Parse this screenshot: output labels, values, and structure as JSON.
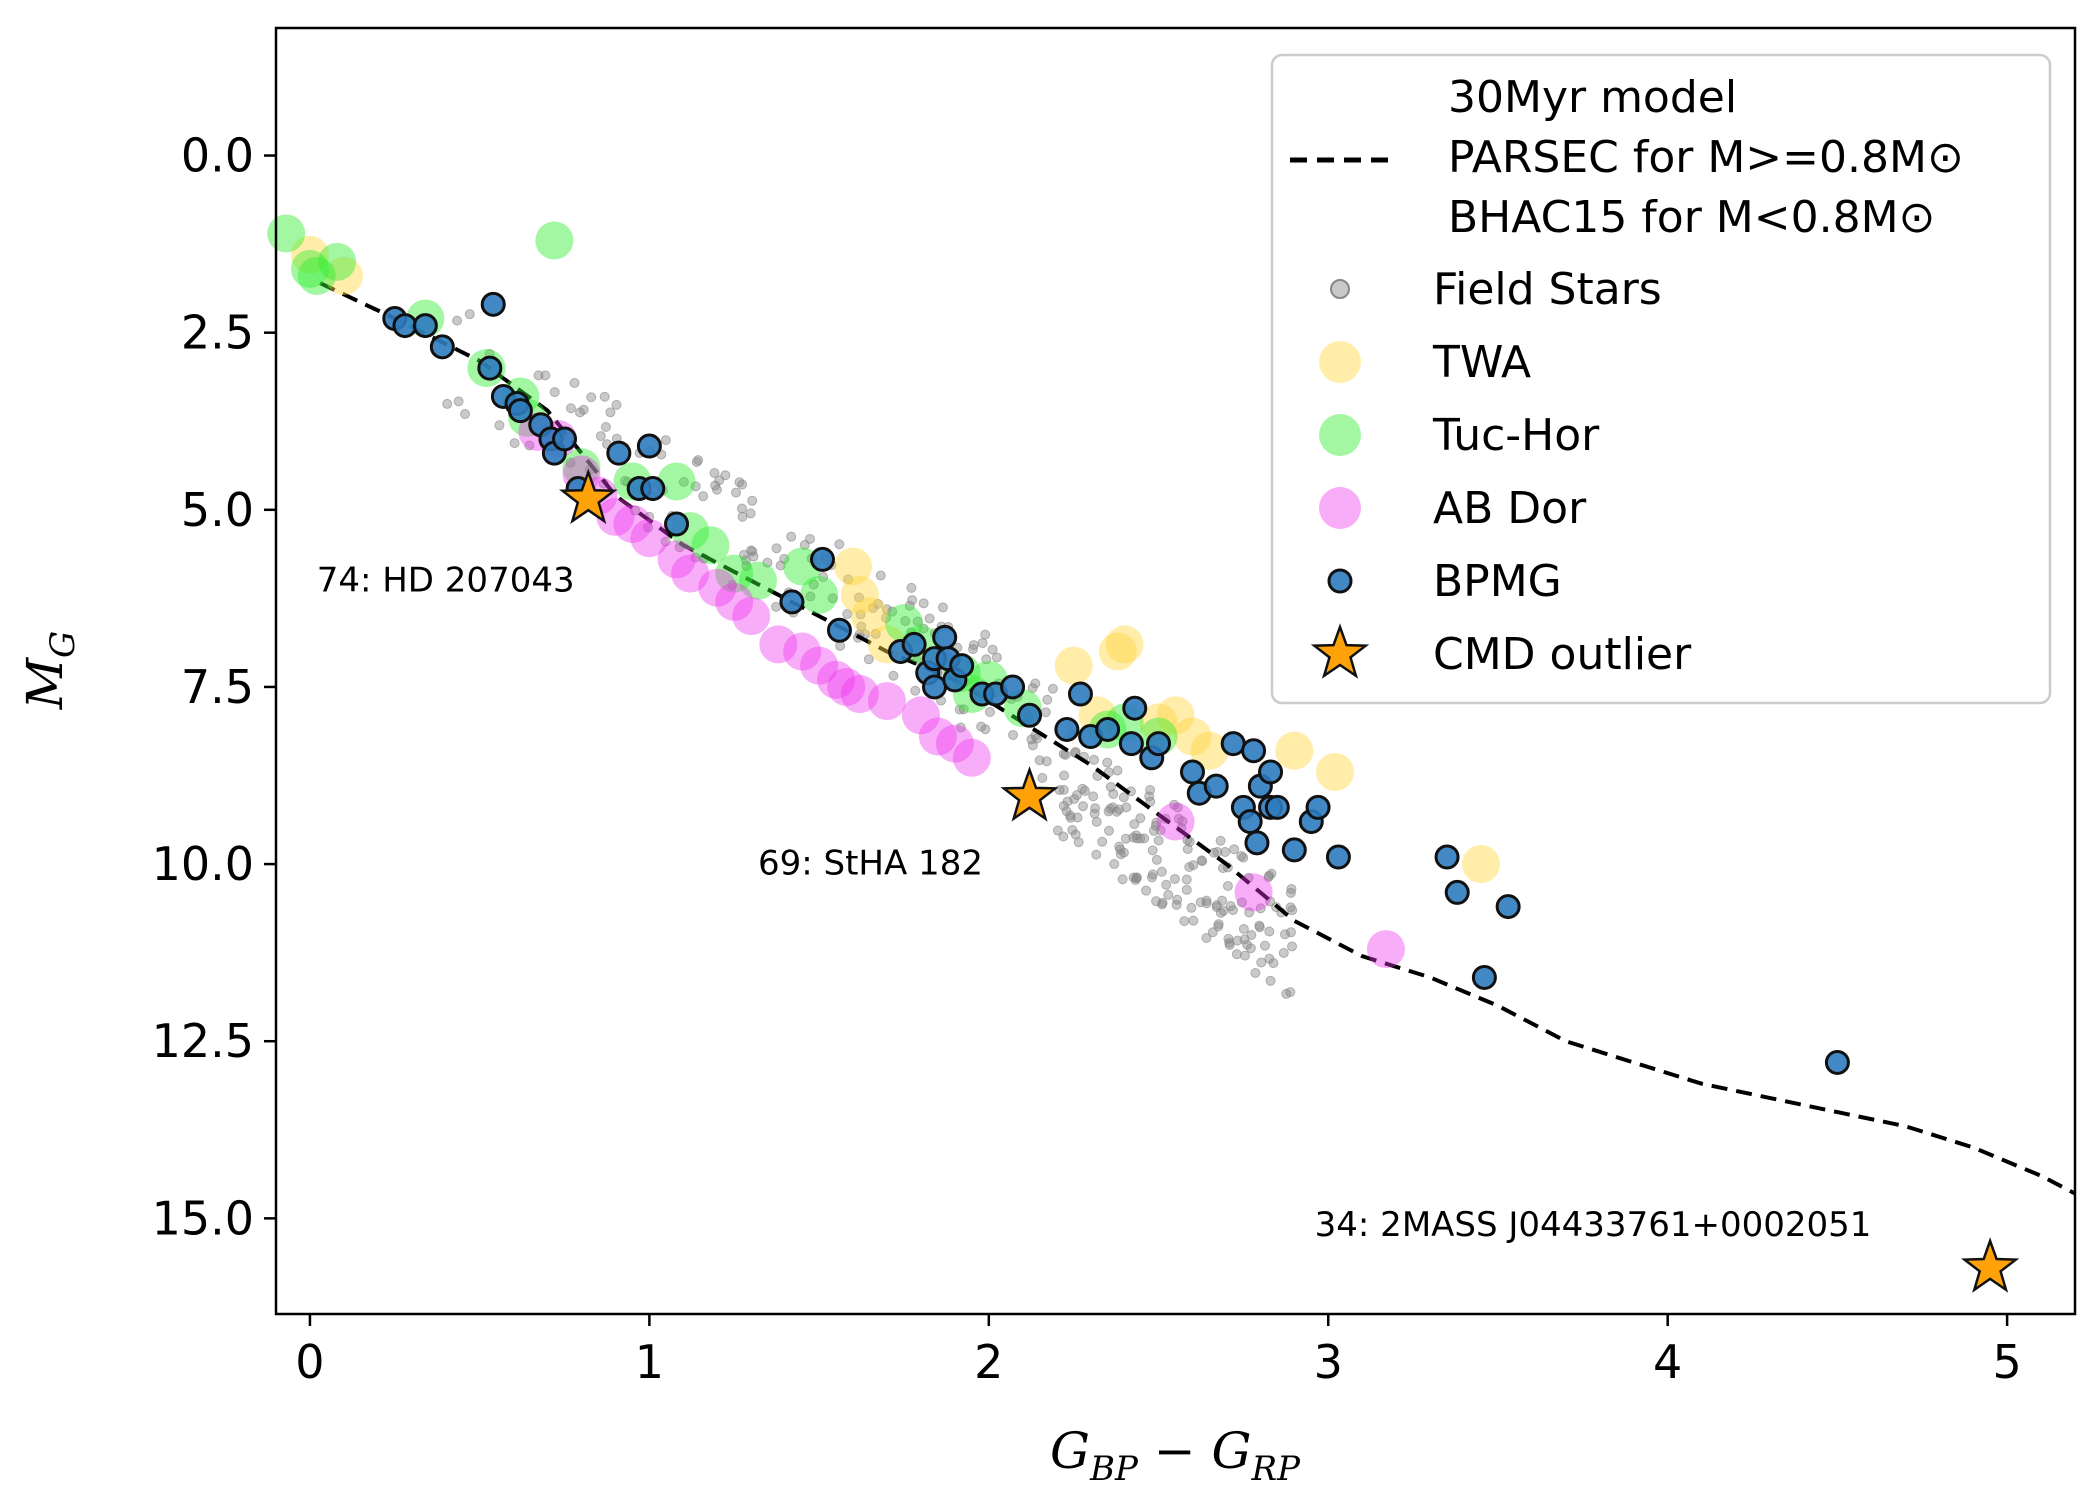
{
  "chart_data": {
    "type": "scatter",
    "xlabel": "G_BP − G_RP",
    "ylabel": "M_G",
    "xlim": [
      -0.1,
      5.2
    ],
    "ylim": [
      16.35,
      -1.8
    ],
    "x_ticks": [
      "0",
      "1",
      "2",
      "3",
      "4",
      "5"
    ],
    "y_ticks": [
      "0.0",
      "2.5",
      "5.0",
      "7.5",
      "10.0",
      "12.5",
      "15.0"
    ],
    "legend": {
      "position": "top-right",
      "model_label": [
        "30Myr model",
        "PARSEC for M>=0.8M⊙",
        "BHAC15 for M<0.8M⊙"
      ],
      "entries": [
        "Field Stars",
        "TWA",
        "Tuc-Hor",
        "AB Dor",
        "BPMG",
        "CMD outlier"
      ]
    },
    "colors": {
      "field": "#888888",
      "twa": "#ffd740",
      "tuchor": "#33ee33",
      "abdor": "#ee33ee",
      "bpmg": "#2e7bbf",
      "outlier": "#ffa20a"
    },
    "model_curve": [
      [
        0.03,
        1.8
      ],
      [
        0.25,
        2.3
      ],
      [
        0.5,
        2.9
      ],
      [
        0.7,
        3.6
      ],
      [
        0.8,
        4.2
      ],
      [
        0.9,
        4.8
      ],
      [
        1.1,
        5.5
      ],
      [
        1.3,
        6.0
      ],
      [
        1.5,
        6.5
      ],
      [
        1.7,
        7.0
      ],
      [
        1.9,
        7.4
      ],
      [
        2.1,
        8.0
      ],
      [
        2.3,
        8.6
      ],
      [
        2.5,
        9.3
      ],
      [
        2.7,
        10.0
      ],
      [
        2.9,
        10.8
      ],
      [
        3.1,
        11.3
      ],
      [
        3.3,
        11.6
      ],
      [
        3.5,
        12.0
      ],
      [
        3.7,
        12.5
      ],
      [
        3.9,
        12.8
      ],
      [
        4.1,
        13.1
      ],
      [
        4.3,
        13.3
      ],
      [
        4.5,
        13.5
      ],
      [
        4.7,
        13.7
      ],
      [
        4.9,
        14.0
      ],
      [
        5.1,
        14.4
      ],
      [
        5.2,
        14.65
      ]
    ],
    "twa": [
      [
        0.0,
        1.4
      ],
      [
        0.1,
        1.7
      ],
      [
        1.6,
        5.8
      ],
      [
        1.62,
        6.2
      ],
      [
        1.65,
        6.5
      ],
      [
        1.7,
        6.9
      ],
      [
        2.25,
        7.2
      ],
      [
        2.32,
        7.9
      ],
      [
        2.38,
        7.0
      ],
      [
        2.4,
        6.9
      ],
      [
        2.5,
        8.0
      ],
      [
        2.55,
        7.9
      ],
      [
        2.6,
        8.2
      ],
      [
        2.65,
        8.4
      ],
      [
        2.9,
        8.4
      ],
      [
        3.02,
        8.7
      ],
      [
        3.45,
        10.0
      ]
    ],
    "tuchor": [
      [
        -0.07,
        1.1
      ],
      [
        0.0,
        1.6
      ],
      [
        0.08,
        1.5
      ],
      [
        0.02,
        1.7
      ],
      [
        0.34,
        2.3
      ],
      [
        0.52,
        3.0
      ],
      [
        0.62,
        3.4
      ],
      [
        0.64,
        3.7
      ],
      [
        0.72,
        1.2
      ],
      [
        0.8,
        4.4
      ],
      [
        0.95,
        4.6
      ],
      [
        1.08,
        4.6
      ],
      [
        1.12,
        5.3
      ],
      [
        1.18,
        5.5
      ],
      [
        1.25,
        5.9
      ],
      [
        1.32,
        6.0
      ],
      [
        1.45,
        5.8
      ],
      [
        1.5,
        6.2
      ],
      [
        1.75,
        6.6
      ],
      [
        1.8,
        6.9
      ],
      [
        1.92,
        7.3
      ],
      [
        1.95,
        7.6
      ],
      [
        2.0,
        7.4
      ],
      [
        2.1,
        7.8
      ],
      [
        2.35,
        8.1
      ],
      [
        2.4,
        8.0
      ],
      [
        2.5,
        8.2
      ]
    ],
    "abdor": [
      [
        0.67,
        3.9
      ],
      [
        0.73,
        4.0
      ],
      [
        0.8,
        4.5
      ],
      [
        0.85,
        4.8
      ],
      [
        0.9,
        5.1
      ],
      [
        0.95,
        5.2
      ],
      [
        1.0,
        5.4
      ],
      [
        1.08,
        5.7
      ],
      [
        1.12,
        5.9
      ],
      [
        1.2,
        6.1
      ],
      [
        1.25,
        6.3
      ],
      [
        1.3,
        6.5
      ],
      [
        1.38,
        6.9
      ],
      [
        1.45,
        7.0
      ],
      [
        1.5,
        7.2
      ],
      [
        1.55,
        7.4
      ],
      [
        1.58,
        7.5
      ],
      [
        1.62,
        7.6
      ],
      [
        1.7,
        7.7
      ],
      [
        1.8,
        7.9
      ],
      [
        1.85,
        8.2
      ],
      [
        1.9,
        8.3
      ],
      [
        1.95,
        8.5
      ],
      [
        2.55,
        9.4
      ],
      [
        2.78,
        10.4
      ],
      [
        3.17,
        11.2
      ]
    ],
    "bpmg": [
      [
        0.25,
        2.3
      ],
      [
        0.28,
        2.4
      ],
      [
        0.34,
        2.4
      ],
      [
        0.39,
        2.7
      ],
      [
        0.53,
        3.0
      ],
      [
        0.54,
        2.1
      ],
      [
        0.57,
        3.4
      ],
      [
        0.61,
        3.5
      ],
      [
        0.62,
        3.6
      ],
      [
        0.68,
        3.8
      ],
      [
        0.71,
        4.0
      ],
      [
        0.72,
        4.2
      ],
      [
        0.75,
        4.0
      ],
      [
        0.79,
        4.7
      ],
      [
        0.91,
        4.2
      ],
      [
        0.97,
        4.7
      ],
      [
        1.0,
        4.1
      ],
      [
        1.01,
        4.7
      ],
      [
        1.08,
        5.2
      ],
      [
        1.42,
        6.3
      ],
      [
        1.51,
        5.7
      ],
      [
        1.56,
        6.7
      ],
      [
        1.74,
        7.0
      ],
      [
        1.78,
        6.9
      ],
      [
        1.82,
        7.3
      ],
      [
        1.84,
        7.1
      ],
      [
        1.84,
        7.5
      ],
      [
        1.87,
        6.8
      ],
      [
        1.88,
        7.1
      ],
      [
        1.9,
        7.4
      ],
      [
        1.92,
        7.2
      ],
      [
        1.98,
        7.6
      ],
      [
        2.02,
        7.6
      ],
      [
        2.07,
        7.5
      ],
      [
        2.12,
        7.9
      ],
      [
        2.23,
        8.1
      ],
      [
        2.27,
        7.6
      ],
      [
        2.3,
        8.2
      ],
      [
        2.35,
        8.1
      ],
      [
        2.42,
        8.3
      ],
      [
        2.43,
        7.8
      ],
      [
        2.48,
        8.5
      ],
      [
        2.5,
        8.3
      ],
      [
        2.6,
        8.7
      ],
      [
        2.62,
        9.0
      ],
      [
        2.67,
        8.9
      ],
      [
        2.72,
        8.3
      ],
      [
        2.75,
        9.2
      ],
      [
        2.77,
        9.4
      ],
      [
        2.78,
        8.4
      ],
      [
        2.79,
        9.7
      ],
      [
        2.8,
        8.9
      ],
      [
        2.83,
        8.7
      ],
      [
        2.83,
        9.2
      ],
      [
        2.85,
        9.2
      ],
      [
        2.9,
        9.8
      ],
      [
        2.95,
        9.4
      ],
      [
        2.97,
        9.2
      ],
      [
        3.03,
        9.9
      ],
      [
        3.35,
        9.9
      ],
      [
        3.38,
        10.4
      ],
      [
        3.46,
        11.6
      ],
      [
        3.53,
        10.6
      ],
      [
        4.5,
        12.8
      ]
    ],
    "outliers": [
      [
        0.82,
        4.85
      ],
      [
        2.12,
        9.05
      ],
      [
        4.95,
        15.7
      ]
    ],
    "annotations": [
      {
        "text": "74: HD 207043",
        "x": 0.02,
        "y": 6.15
      },
      {
        "text": "69: StHA 182",
        "x": 1.32,
        "y": 10.15
      },
      {
        "text": "34: 2MASS J04433761+0002051",
        "x": 2.96,
        "y": 15.25
      }
    ]
  }
}
